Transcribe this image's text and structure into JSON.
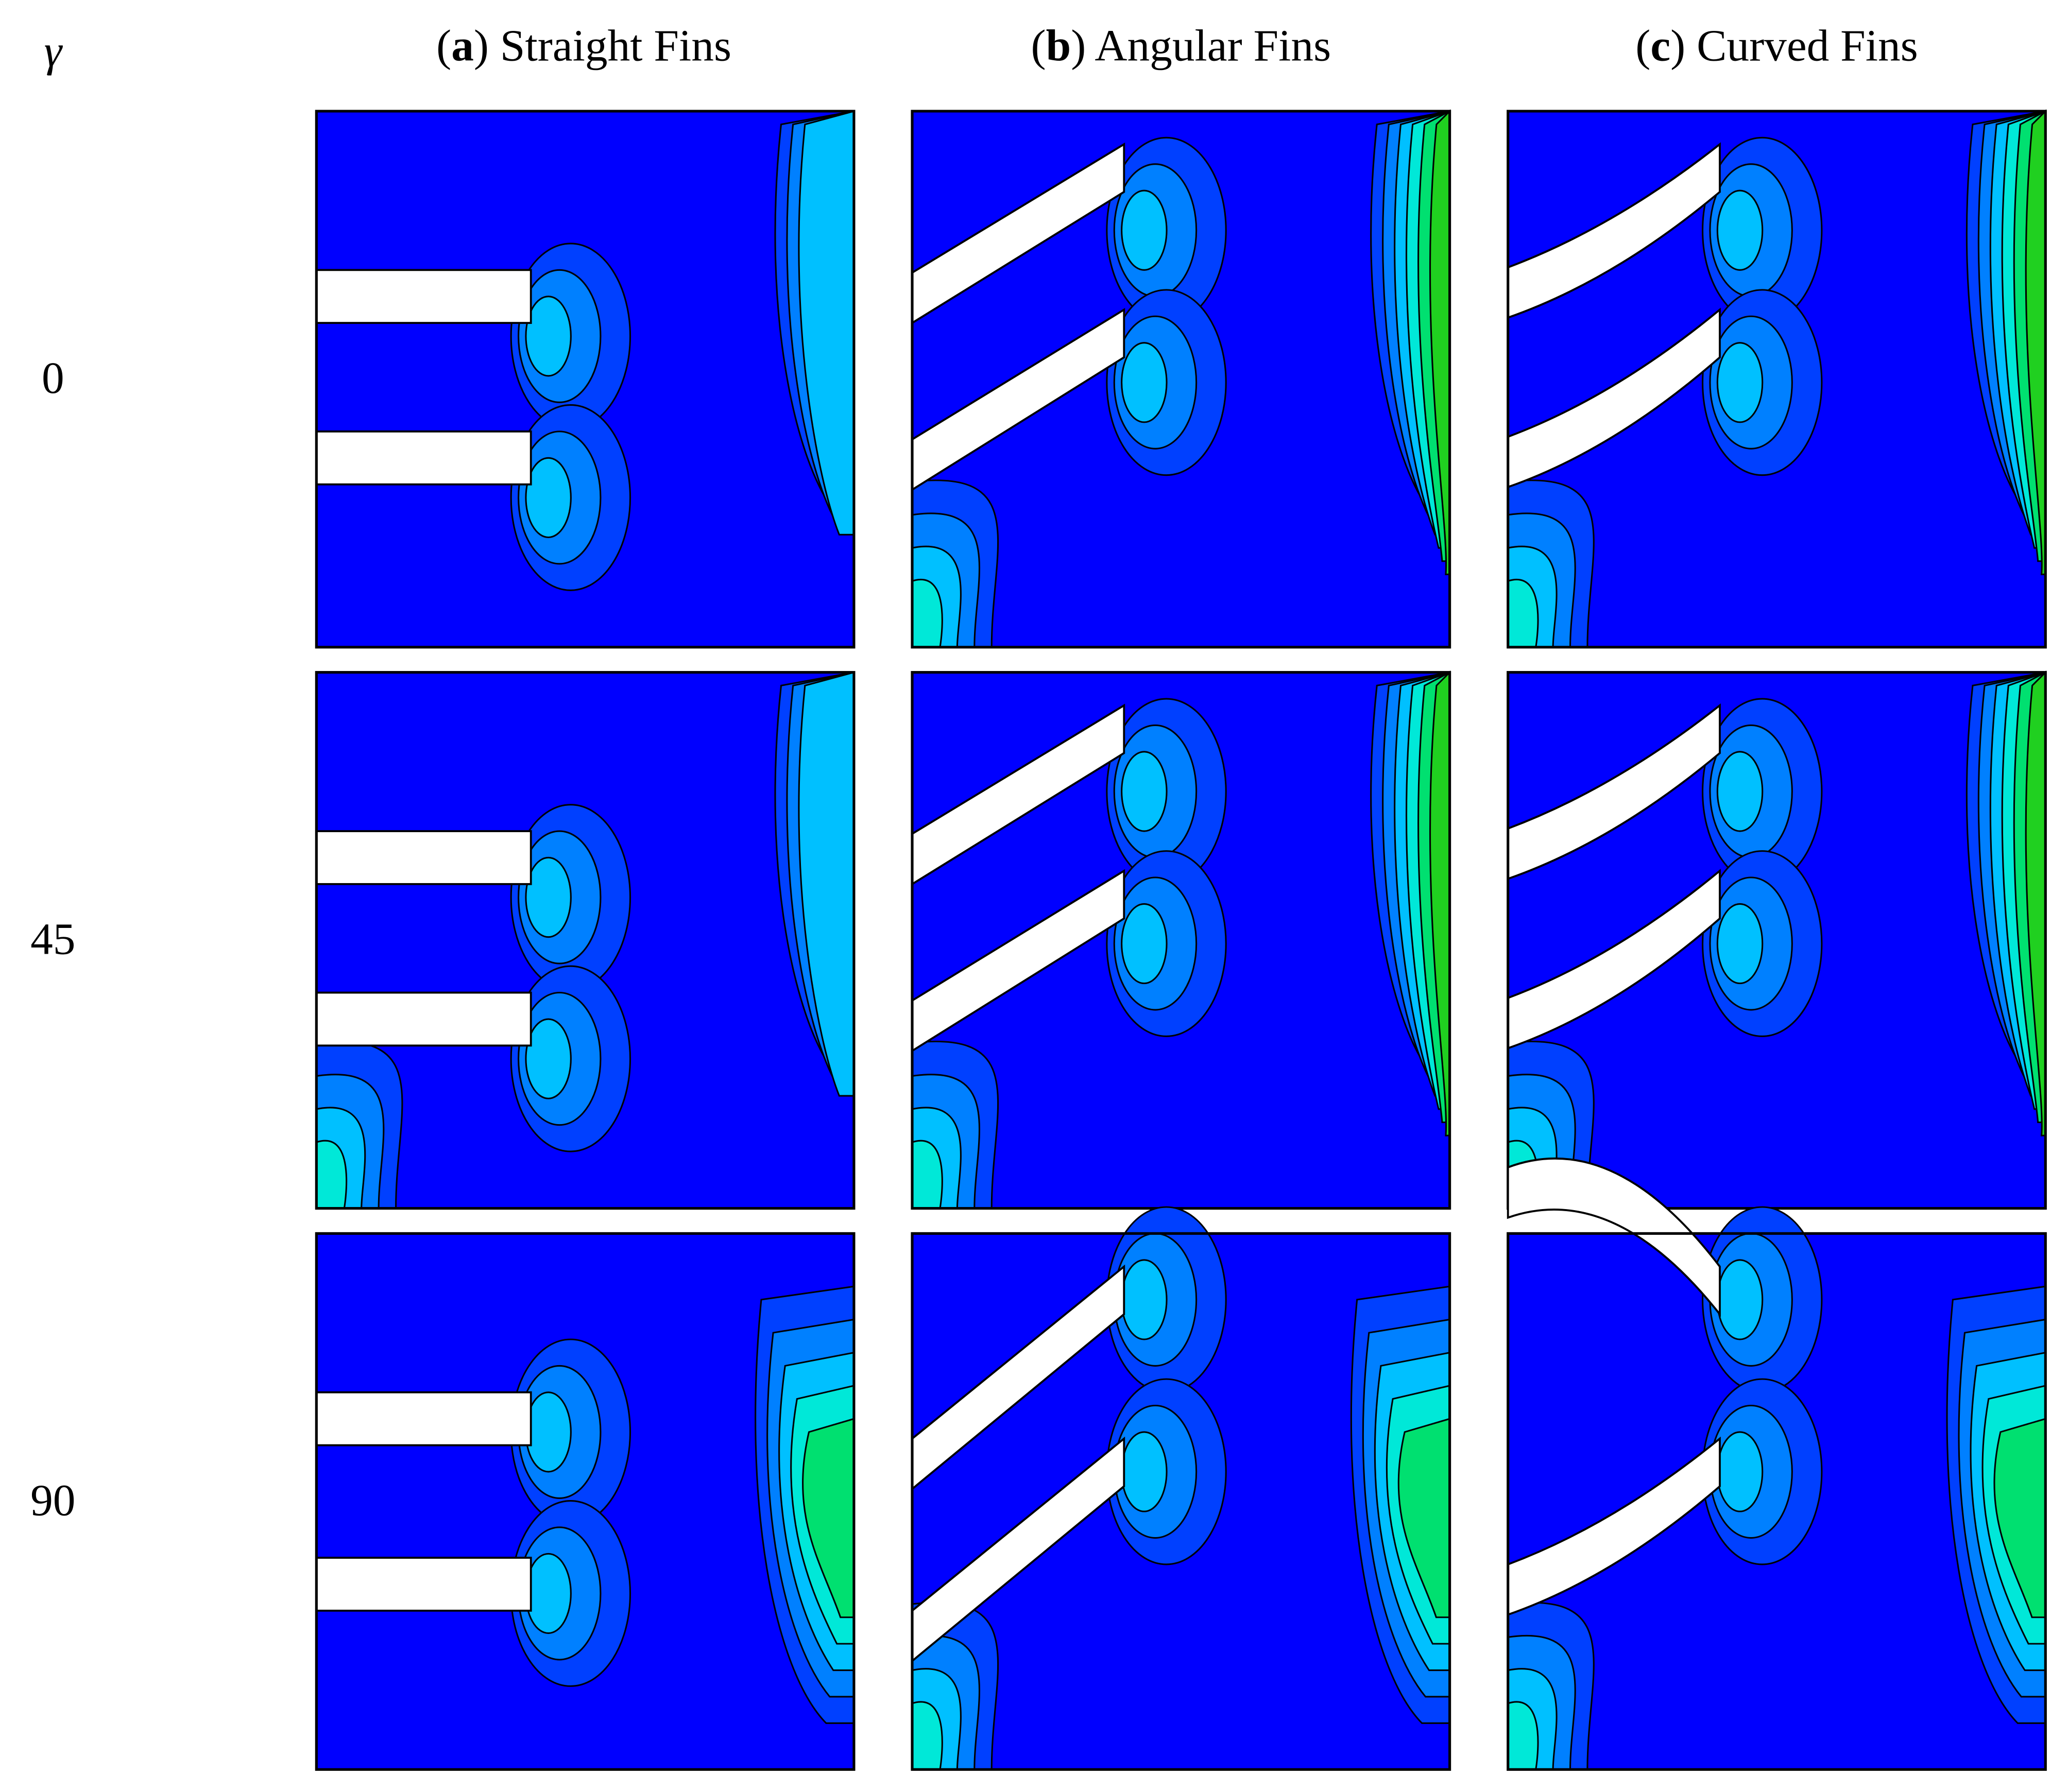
{
  "symbol": "γ",
  "columns": [
    {
      "parts": [
        "(",
        "a",
        ") Straight Fins"
      ]
    },
    {
      "parts": [
        "(",
        "b",
        ") Angular Fins"
      ]
    },
    {
      "parts": [
        "(",
        "c",
        ") Curved Fins"
      ]
    }
  ],
  "rows": [
    "0",
    "45",
    "90"
  ]
}
